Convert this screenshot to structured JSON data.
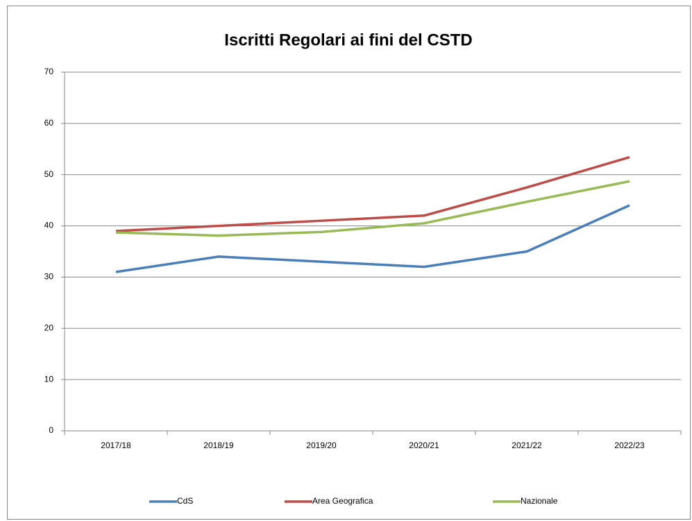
{
  "chart_data": {
    "type": "line",
    "title": "Iscritti Regolari ai fini del CSTD",
    "categories": [
      "2017/18",
      "2018/19",
      "2019/20",
      "2020/21",
      "2021/22",
      "2022/23"
    ],
    "series": [
      {
        "name": "CdS",
        "color": "#4a7ebb",
        "values": [
          31,
          34,
          33,
          32,
          35,
          44
        ]
      },
      {
        "name": "Area Geografica",
        "color": "#be4b48",
        "values": [
          39,
          40,
          41,
          42,
          47.5,
          53.4
        ]
      },
      {
        "name": "Nazionale",
        "color": "#98b954",
        "values": [
          38.7,
          38.1,
          38.8,
          40.5,
          44.7,
          48.7
        ]
      }
    ],
    "ylim": [
      0,
      70
    ],
    "yticks": [
      0,
      10,
      20,
      30,
      40,
      50,
      60,
      70
    ],
    "grid": true,
    "legend": "bottom"
  }
}
